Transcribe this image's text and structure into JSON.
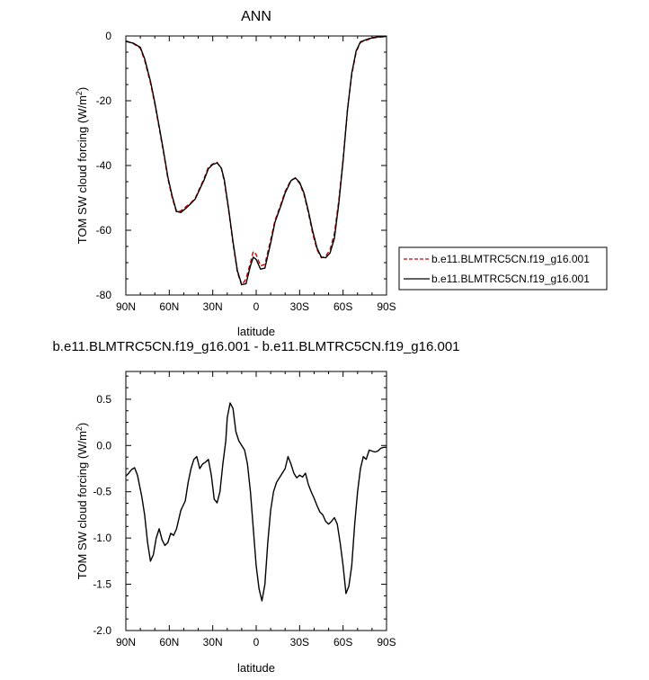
{
  "chart_data": [
    {
      "type": "line",
      "title": "ANN",
      "xlabel": "latitude",
      "ylabel": "TOM SW cloud forcing (W/m",
      "ylabel_sup": "2",
      "ylabel_close": ")",
      "xlim": [
        90,
        -90
      ],
      "ylim": [
        -80,
        0
      ],
      "x_ticks": [
        90,
        60,
        30,
        0,
        -30,
        -60,
        -90
      ],
      "x_tick_labels": [
        "90N",
        "60N",
        "30N",
        "0",
        "30S",
        "60S",
        "90S"
      ],
      "y_ticks": [
        0,
        -20,
        -40,
        -60,
        -80
      ],
      "y_tick_labels": [
        "0",
        "-20",
        "-40",
        "-60",
        "-80"
      ],
      "legend_placement": "right",
      "series": [
        {
          "name": "b.e11.BLMTRC5CN.f19_g16.001",
          "color": "#cc0000",
          "dash": "dashed",
          "x": [
            90,
            85,
            80,
            77,
            73,
            70,
            67,
            64,
            61,
            58,
            55,
            52,
            48,
            45,
            42,
            39,
            36,
            33,
            30,
            27,
            24,
            22,
            19,
            16,
            13,
            10,
            7,
            4,
            2,
            0,
            -3,
            -6,
            -10,
            -13,
            -17,
            -20,
            -24,
            -27,
            -30,
            -33,
            -36,
            -39,
            -42,
            -45,
            -48,
            -51,
            -54,
            -57,
            -60,
            -63,
            -66,
            -69,
            -72,
            -75,
            -78,
            -81,
            -84,
            -87,
            -90
          ],
          "y": [
            -1.5,
            -2.3,
            -3.8,
            -7.5,
            -14.5,
            -21,
            -28.5,
            -36,
            -44,
            -50,
            -54.5,
            -54,
            -52.5,
            -51.5,
            -50,
            -47,
            -44,
            -40.5,
            -39.5,
            -39,
            -41,
            -45,
            -54,
            -64,
            -73,
            -77,
            -75,
            -70,
            -66.5,
            -67.5,
            -71,
            -70.5,
            -63,
            -57,
            -52,
            -48,
            -44.5,
            -44,
            -45.5,
            -49,
            -54.5,
            -61,
            -66,
            -68.5,
            -68,
            -66,
            -61,
            -51,
            -38,
            -23,
            -12,
            -5,
            -2,
            -1.5,
            -1,
            -0.6,
            -0.4,
            -0.3,
            -0.2
          ]
        },
        {
          "name": "b.e11.BLMTRC5CN.f19_g16.001",
          "color": "#000000",
          "dash": "solid",
          "x": [
            90,
            85,
            80,
            77,
            73,
            70,
            67,
            64,
            61,
            58,
            55,
            52,
            48,
            45,
            42,
            39,
            36,
            33,
            30,
            27,
            24,
            22,
            19,
            16,
            13,
            10,
            7,
            4,
            2,
            0,
            -3,
            -6,
            -10,
            -13,
            -17,
            -20,
            -24,
            -27,
            -30,
            -33,
            -36,
            -39,
            -42,
            -45,
            -48,
            -51,
            -54,
            -57,
            -60,
            -63,
            -66,
            -69,
            -72,
            -75,
            -78,
            -81,
            -84,
            -87,
            -90
          ],
          "y": [
            -1.7,
            -2.2,
            -3.5,
            -7,
            -14,
            -20.5,
            -28,
            -35.5,
            -43.5,
            -49.5,
            -54.2,
            -54.5,
            -53,
            -51.7,
            -50.3,
            -47.3,
            -44.5,
            -41,
            -39.7,
            -39.2,
            -40.8,
            -44.5,
            -53.5,
            -63.5,
            -72.5,
            -76.8,
            -76.5,
            -71,
            -68.3,
            -69,
            -72,
            -71.7,
            -64,
            -57.5,
            -52.5,
            -48.5,
            -44.7,
            -43.8,
            -45.2,
            -48.5,
            -54,
            -60.2,
            -65.5,
            -68.3,
            -68.5,
            -67,
            -62.5,
            -52,
            -38.5,
            -23,
            -11.5,
            -4.6,
            -1.8,
            -1.3,
            -0.8,
            -0.5,
            -0.3,
            -0.2,
            -0.1
          ]
        }
      ]
    },
    {
      "type": "line",
      "title": "b.e11.BLMTRC5CN.f19_g16.001 - b.e11.BLMTRC5CN.f19_g16.001",
      "xlabel": "latitude",
      "ylabel": "TOM SW cloud forcing (W/m",
      "ylabel_sup": "2",
      "ylabel_close": ")",
      "xlim": [
        90,
        -90
      ],
      "ylim": [
        -2.0,
        0.8
      ],
      "x_ticks": [
        90,
        60,
        30,
        0,
        -30,
        -60,
        -90
      ],
      "x_tick_labels": [
        "90N",
        "60N",
        "30N",
        "0",
        "30S",
        "60S",
        "90S"
      ],
      "y_ticks": [
        0.5,
        0.0,
        -0.5,
        -1.0,
        -1.5,
        -2.0
      ],
      "y_tick_labels": [
        "0.5",
        "0.0",
        "-0.5",
        "-1.0",
        "-1.5",
        "-2.0"
      ],
      "series": [
        {
          "name": "",
          "color": "#000000",
          "dash": "solid",
          "x": [
            90,
            88,
            86,
            84,
            82,
            79,
            77,
            75,
            73,
            71,
            69,
            67,
            65,
            63,
            61,
            59,
            57,
            55,
            52,
            49,
            47,
            45,
            43,
            41,
            39,
            37,
            35,
            33,
            31,
            29,
            27,
            25,
            23,
            21,
            20,
            18,
            16,
            14,
            12,
            10,
            8,
            6,
            4,
            2,
            0,
            -2,
            -4,
            -6,
            -8,
            -10,
            -12,
            -14,
            -16,
            -18,
            -20,
            -22,
            -24,
            -26,
            -28,
            -30,
            -32,
            -34,
            -36,
            -38,
            -40,
            -42,
            -44,
            -46,
            -48,
            -50,
            -52,
            -54,
            -56,
            -58,
            -60,
            -62,
            -64,
            -66,
            -68,
            -70,
            -72,
            -74,
            -76,
            -78,
            -80,
            -82,
            -84,
            -86,
            -88,
            -90
          ],
          "y": [
            -0.33,
            -0.3,
            -0.26,
            -0.24,
            -0.32,
            -0.55,
            -0.75,
            -1.05,
            -1.25,
            -1.18,
            -1.0,
            -0.9,
            -1.02,
            -1.08,
            -1.05,
            -0.95,
            -0.97,
            -0.9,
            -0.7,
            -0.6,
            -0.4,
            -0.25,
            -0.15,
            -0.12,
            -0.25,
            -0.2,
            -0.18,
            -0.15,
            -0.32,
            -0.58,
            -0.62,
            -0.5,
            -0.2,
            0.05,
            0.3,
            0.46,
            0.4,
            0.15,
            0.05,
            0.0,
            -0.05,
            -0.2,
            -0.5,
            -0.9,
            -1.3,
            -1.55,
            -1.68,
            -1.5,
            -1.05,
            -0.7,
            -0.5,
            -0.4,
            -0.35,
            -0.3,
            -0.25,
            -0.12,
            -0.2,
            -0.3,
            -0.35,
            -0.32,
            -0.34,
            -0.3,
            -0.42,
            -0.5,
            -0.57,
            -0.65,
            -0.72,
            -0.75,
            -0.82,
            -0.85,
            -0.82,
            -0.78,
            -0.85,
            -1.05,
            -1.3,
            -1.6,
            -1.52,
            -1.3,
            -0.85,
            -0.5,
            -0.25,
            -0.12,
            -0.15,
            -0.05,
            -0.06,
            -0.07,
            -0.06,
            -0.03,
            -0.02,
            -0.02
          ]
        }
      ]
    }
  ]
}
